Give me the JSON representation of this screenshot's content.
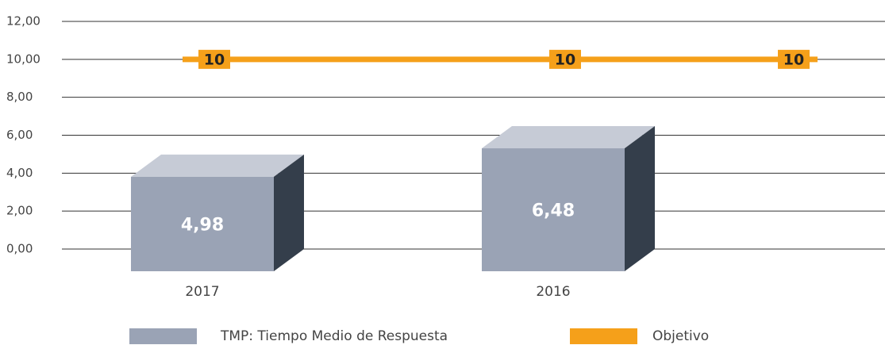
{
  "chart_data": {
    "type": "bar",
    "categories": [
      "2017",
      "2016",
      null
    ],
    "series": [
      {
        "name": "TMP: Tiempo Medio de Respuesta",
        "type": "bar",
        "color": "#9aa3b5",
        "values": [
          4.98,
          6.48,
          null
        ],
        "value_labels": [
          "4,98",
          "6,48",
          null
        ]
      },
      {
        "name": "Objetivo",
        "type": "line",
        "color": "#f5a01a",
        "values": [
          10,
          10,
          10
        ]
      }
    ],
    "ylim": [
      0,
      12
    ],
    "yticks": [
      {
        "value": 0,
        "label": "0,00"
      },
      {
        "value": 2,
        "label": "2,00"
      },
      {
        "value": 4,
        "label": "4,00"
      },
      {
        "value": 6,
        "label": "6,00"
      },
      {
        "value": 8,
        "label": "8,00"
      },
      {
        "value": 10,
        "label": "10,00"
      },
      {
        "value": 12,
        "label": "12,00"
      }
    ],
    "grid": true,
    "legend": "bottom"
  }
}
